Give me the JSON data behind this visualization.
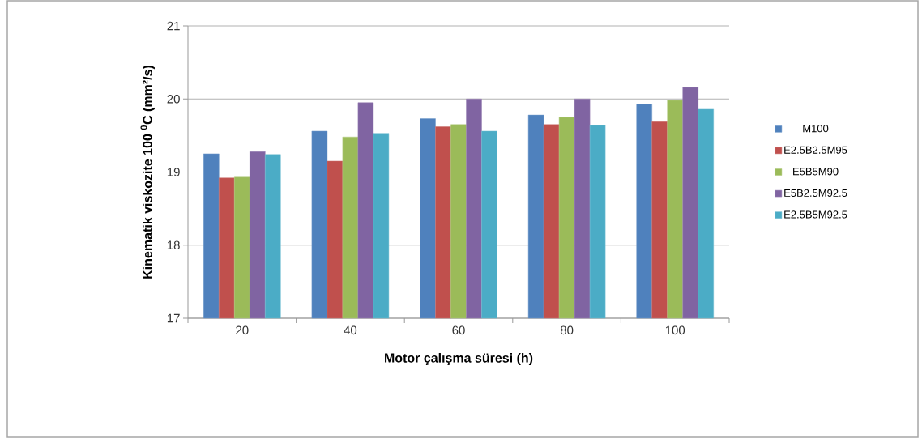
{
  "chart_data": {
    "type": "bar",
    "xlabel": "Motor çalışma süresi (h)",
    "ylabel": "Kinematik viskozite 100  $^{0}$C (mm²/s)",
    "categories": [
      "20",
      "40",
      "60",
      "80",
      "100"
    ],
    "series": [
      {
        "name": "M100",
        "color": "#4f81bd",
        "values": [
          19.25,
          19.56,
          19.73,
          19.78,
          19.93
        ]
      },
      {
        "name": "E2.5B2.5M95",
        "color": "#c0504d",
        "values": [
          18.92,
          19.15,
          19.62,
          19.65,
          19.69
        ]
      },
      {
        "name": "E5B5M90",
        "color": "#9bbb59",
        "values": [
          18.93,
          19.48,
          19.65,
          19.75,
          19.98
        ]
      },
      {
        "name": "E5B2.5M92.5",
        "color": "#8064a2",
        "values": [
          19.28,
          19.95,
          20.0,
          20.0,
          20.16
        ]
      },
      {
        "name": "E2.5B5M92.5",
        "color": "#4bacc6",
        "values": [
          19.24,
          19.53,
          19.56,
          19.64,
          19.86
        ]
      }
    ],
    "ylim": [
      17,
      21
    ],
    "yticks": [
      17,
      18,
      19,
      20,
      21
    ],
    "grid": "y",
    "legend": "right"
  }
}
